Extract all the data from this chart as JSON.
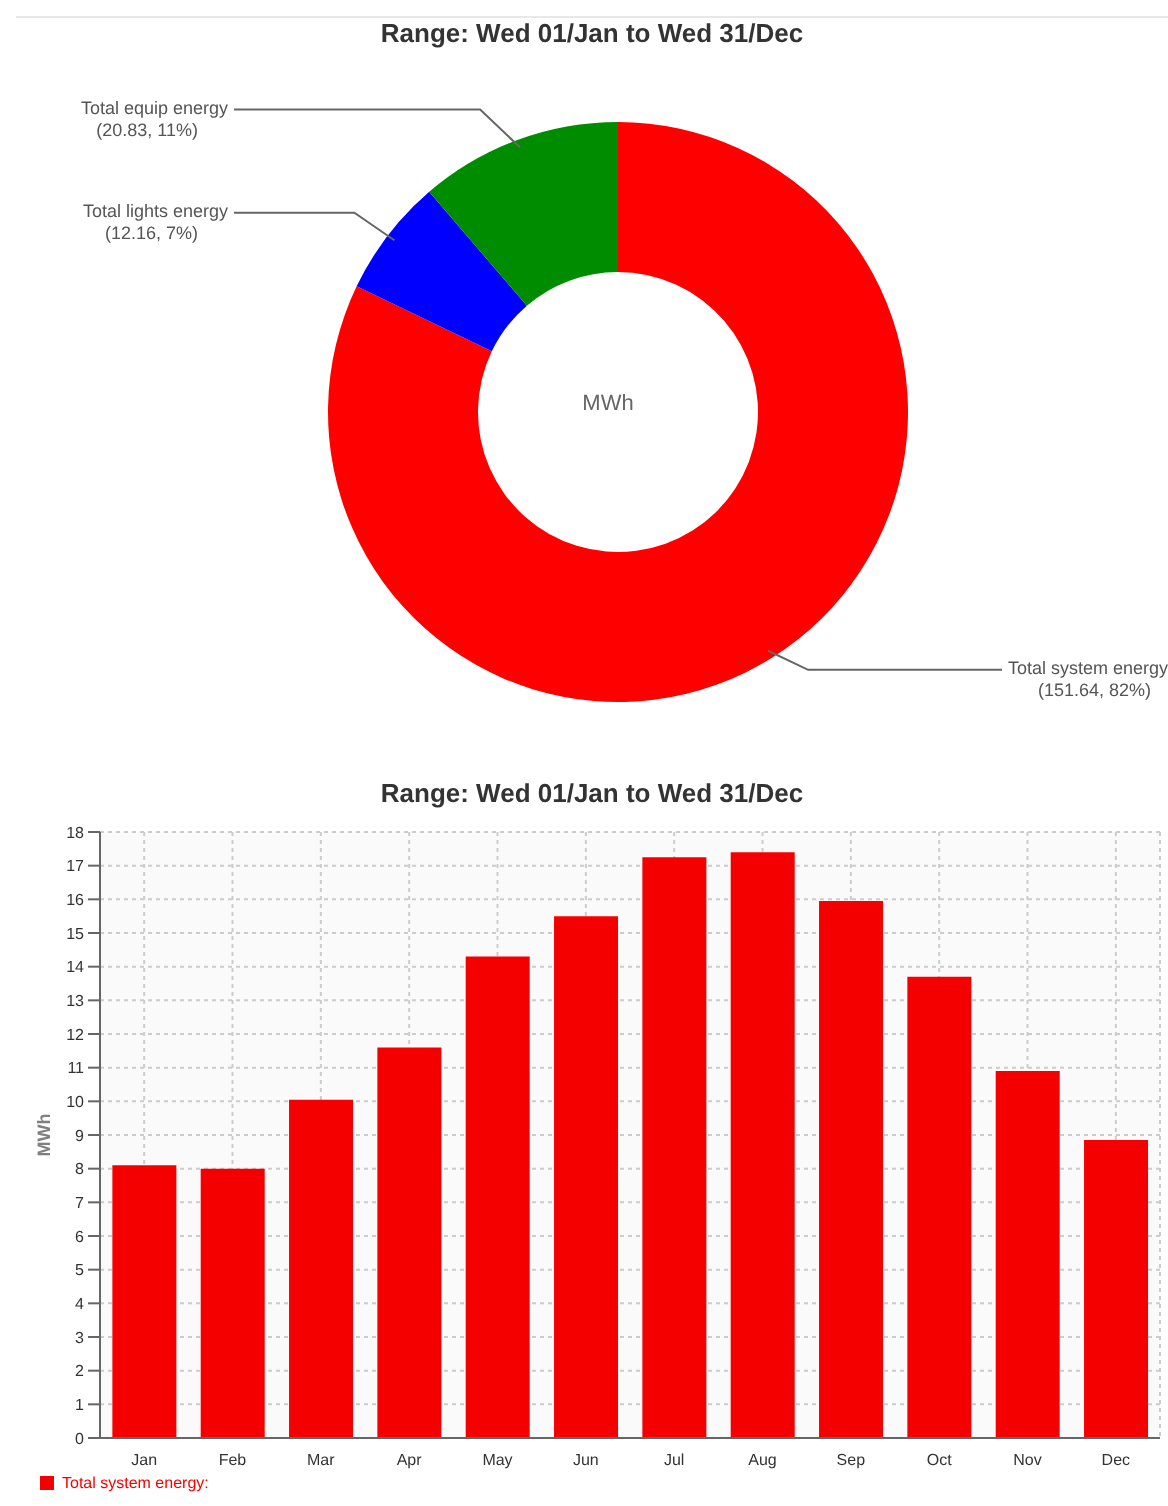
{
  "chart_data": [
    {
      "type": "donut",
      "title": "Range: Wed 01/Jan to Wed 31/Dec",
      "categories": [
        "Total system energy",
        "Total lights energy",
        "Total equip energy"
      ],
      "values": [
        151.64,
        12.16,
        20.83
      ],
      "colors": [
        "#ff0000",
        "#0000ff",
        "#008c00"
      ],
      "value_labels": [
        "(151.64, 82%)",
        "(12.16, 7%)",
        "(20.83, 11%)"
      ],
      "annotations": [
        "MWh"
      ],
      "legend": false
    },
    {
      "type": "bar",
      "title": "Range: Wed 01/Jan to Wed 31/Dec",
      "ylabel": "MWh",
      "categories": [
        "Jan",
        "Feb",
        "Mar",
        "Apr",
        "May",
        "Jun",
        "Jul",
        "Aug",
        "Sep",
        "Oct",
        "Nov",
        "Dec"
      ],
      "series": [
        {
          "name": "Total system energy:",
          "color": "#f50000",
          "values": [
            8.1,
            8.0,
            10.05,
            11.6,
            14.3,
            15.5,
            17.25,
            17.4,
            15.95,
            13.7,
            10.9,
            8.85
          ]
        }
      ],
      "ylim": [
        0,
        18
      ],
      "yticks": [
        0,
        1,
        2,
        3,
        4,
        5,
        6,
        7,
        8,
        9,
        10,
        11,
        12,
        13,
        14,
        15,
        16,
        17,
        18
      ],
      "grid": true,
      "legend": "bottom left"
    }
  ]
}
